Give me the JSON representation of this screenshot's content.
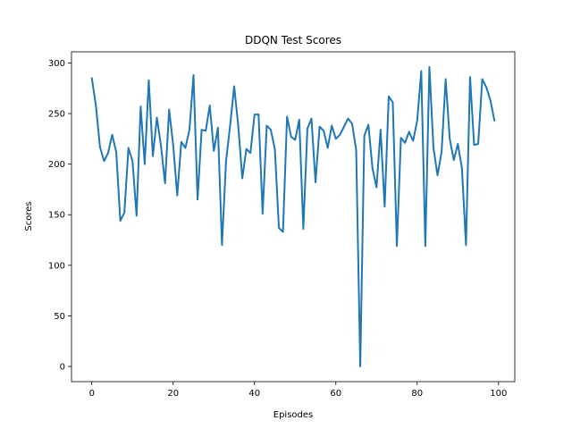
{
  "chart_data": {
    "type": "line",
    "title": "DDQN Test Scores",
    "xlabel": "Episodes",
    "ylabel": "Scores",
    "xlim": [
      -5,
      104
    ],
    "ylim": [
      -15,
      311
    ],
    "x_ticks": [
      0,
      20,
      40,
      60,
      80,
      100
    ],
    "y_ticks": [
      0,
      50,
      100,
      150,
      200,
      250,
      300
    ],
    "grid": false,
    "line_color": "#1f77b4",
    "series": [
      {
        "x": [
          0,
          1,
          2,
          3,
          4,
          5,
          6,
          7,
          8,
          9,
          10,
          11,
          12,
          13,
          14,
          15,
          16,
          17,
          18,
          19,
          20,
          21,
          22,
          23,
          24,
          25,
          26,
          27,
          28,
          29,
          30,
          31,
          32,
          33,
          34,
          35,
          36,
          37,
          38,
          39,
          40,
          41,
          42,
          43,
          44,
          45,
          46,
          47,
          48,
          49,
          50,
          51,
          52,
          53,
          54,
          55,
          56,
          57,
          58,
          59,
          60,
          61,
          62,
          63,
          64,
          65,
          66,
          67,
          68,
          69,
          70,
          71,
          72,
          73,
          74,
          75,
          76,
          77,
          78,
          79,
          80,
          81,
          82,
          83,
          84,
          85,
          86,
          87,
          88,
          89,
          90,
          91,
          92,
          93,
          94,
          95,
          96,
          97,
          98,
          99
        ],
        "values": [
          285,
          258,
          217,
          203,
          211,
          229,
          212,
          144,
          152,
          216,
          203,
          149,
          257,
          200,
          283,
          208,
          246,
          218,
          181,
          254,
          219,
          169,
          222,
          216,
          234,
          288,
          165,
          234,
          233,
          258,
          213,
          236,
          120,
          203,
          238,
          277,
          238,
          186,
          215,
          211,
          249,
          249,
          151,
          238,
          234,
          215,
          137,
          133,
          247,
          227,
          224,
          244,
          136,
          235,
          245,
          182,
          237,
          233,
          216,
          238,
          225,
          229,
          237,
          245,
          240,
          214,
          0,
          228,
          239,
          196,
          177,
          234,
          158,
          267,
          261,
          119,
          226,
          221,
          232,
          223,
          243,
          292,
          119,
          296,
          216,
          189,
          212,
          284,
          225,
          204,
          220,
          196,
          120,
          286,
          219,
          220,
          284,
          276,
          263,
          243
        ]
      }
    ]
  }
}
